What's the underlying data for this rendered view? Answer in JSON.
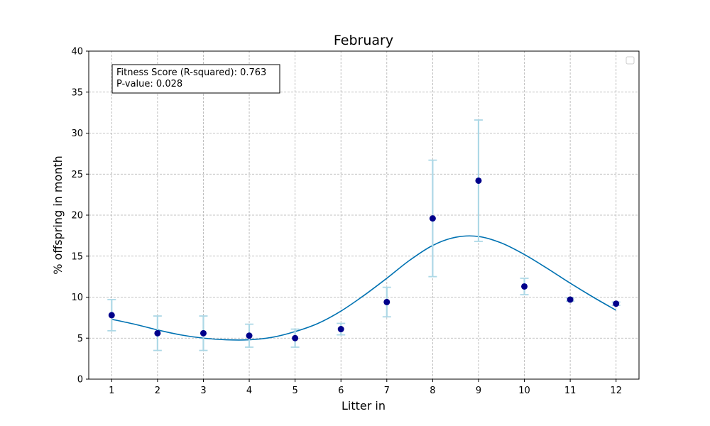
{
  "chart_data": {
    "type": "scatter",
    "title": "February",
    "xlabel": "Litter in",
    "ylabel": "% offspring in month",
    "xlim": [
      0.5,
      12.5
    ],
    "ylim": [
      0,
      40
    ],
    "x_ticks": [
      1,
      2,
      3,
      4,
      5,
      6,
      7,
      8,
      9,
      10,
      11,
      12
    ],
    "y_ticks": [
      0,
      5,
      10,
      15,
      20,
      25,
      30,
      35,
      40
    ],
    "grid": true,
    "legend": "top-right (empty)",
    "annotation": {
      "line1": "Fitness Score (R-squared): 0.763",
      "line2": "P-value: 0.028"
    },
    "points": {
      "x": [
        1,
        2,
        3,
        4,
        5,
        6,
        7,
        8,
        9,
        10,
        11,
        12
      ],
      "y": [
        7.8,
        5.6,
        5.6,
        5.3,
        5.0,
        6.1,
        9.4,
        19.6,
        24.2,
        11.3,
        9.7,
        9.2
      ],
      "err": [
        1.9,
        2.1,
        2.1,
        1.4,
        1.1,
        0.7,
        1.8,
        7.1,
        7.4,
        1.0,
        0.2,
        0.2
      ],
      "color": "#00008b",
      "err_color": "#add8e6"
    },
    "fit": {
      "x": [
        1,
        1.5,
        2,
        2.5,
        3,
        3.5,
        4,
        4.5,
        5,
        5.5,
        6,
        6.5,
        7,
        7.5,
        8,
        8.5,
        9,
        9.5,
        10,
        10.5,
        11,
        11.5,
        12
      ],
      "y": [
        7.3,
        6.7,
        6.0,
        5.4,
        5.0,
        4.8,
        4.8,
        5.1,
        5.8,
        6.8,
        8.3,
        10.2,
        12.3,
        14.5,
        16.3,
        17.3,
        17.4,
        16.6,
        15.2,
        13.5,
        11.7,
        10.0,
        8.4
      ],
      "color": "#0072b2"
    }
  }
}
